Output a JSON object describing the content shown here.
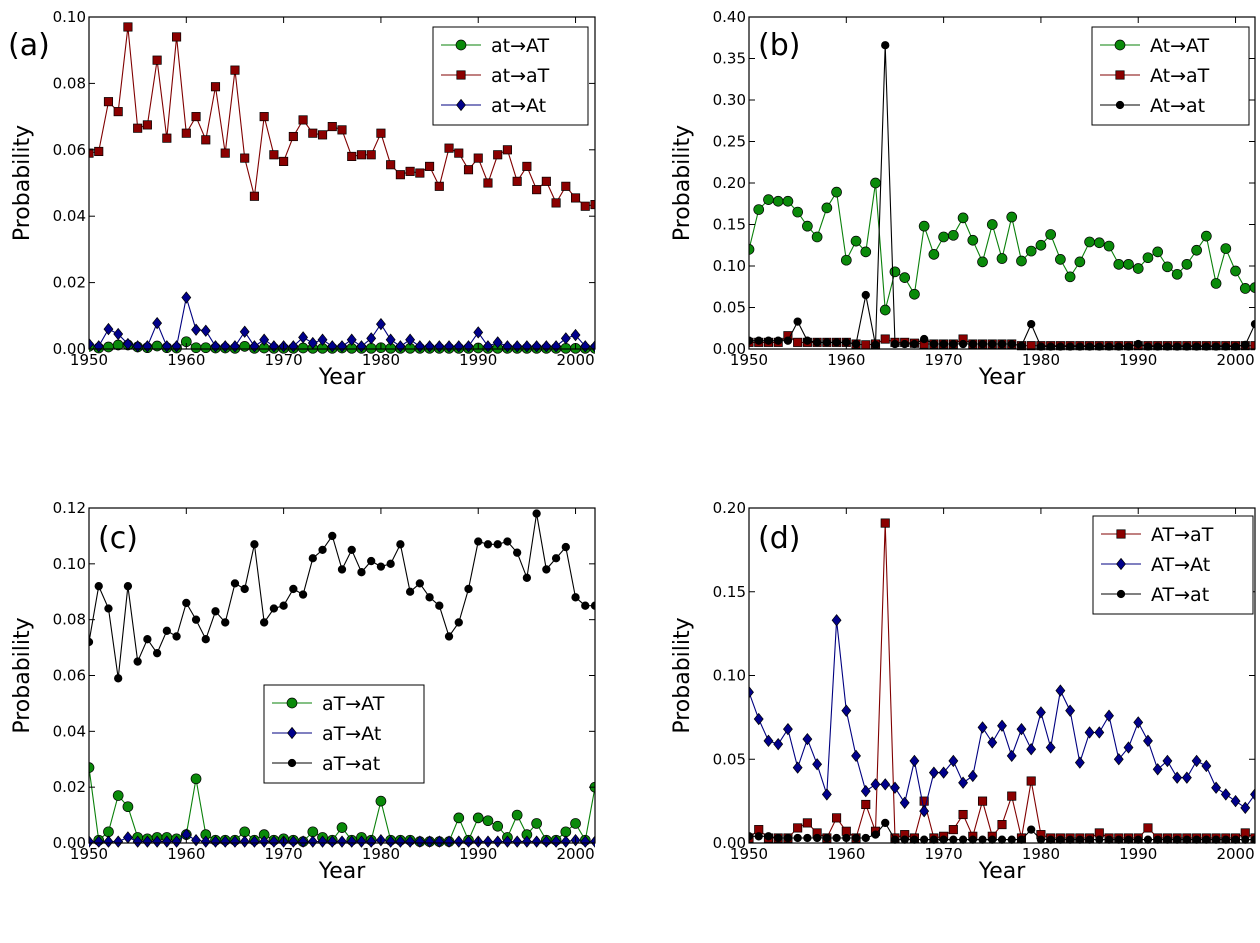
{
  "figure": {
    "panels": [
      "(a)",
      "(b)",
      "(c)",
      "(d)"
    ]
  },
  "colors": {
    "green": "#0a800a",
    "green_marker": "#0a8a0a",
    "red": "#800000",
    "red_marker": "#8b0000",
    "blue": "#000080",
    "blue_marker": "#00008b",
    "black": "#000000"
  },
  "chart_data": [
    {
      "type": "line",
      "panel_label": "(a)",
      "xlabel": "Year",
      "ylabel": "Probability",
      "xlim": [
        1950,
        2002
      ],
      "ylim": [
        0,
        0.1
      ],
      "xticks": [
        1950,
        1960,
        1970,
        1980,
        1990,
        2000
      ],
      "yticks": [
        0.0,
        0.02,
        0.04,
        0.06,
        0.08,
        0.1
      ],
      "ytick_labels": [
        "0.00",
        "0.02",
        "0.04",
        "0.06",
        "0.08",
        "0.10"
      ],
      "legend": "top-right",
      "x": [
        1950,
        1951,
        1952,
        1953,
        1954,
        1955,
        1956,
        1957,
        1958,
        1959,
        1960,
        1961,
        1962,
        1963,
        1964,
        1965,
        1966,
        1967,
        1968,
        1969,
        1970,
        1971,
        1972,
        1973,
        1974,
        1975,
        1976,
        1977,
        1978,
        1979,
        1980,
        1981,
        1982,
        1983,
        1984,
        1985,
        1986,
        1987,
        1988,
        1989,
        1990,
        1991,
        1992,
        1993,
        1994,
        1995,
        1996,
        1997,
        1998,
        1999,
        2000,
        2001,
        2002
      ],
      "series": [
        {
          "name": "at→AT",
          "color": "green",
          "marker": "circle",
          "values": [
            0.0008,
            0.0003,
            0.0006,
            0.0012,
            0.0012,
            0.0006,
            0.0004,
            0.0009,
            0.0004,
            0.0003,
            0.0022,
            0.0004,
            0.0004,
            0.0003,
            0.0003,
            0.0002,
            0.0008,
            0.0002,
            0.0003,
            0.0002,
            0.0002,
            0.0002,
            0.0003,
            0.0002,
            0.0002,
            0.0002,
            0.0003,
            0.0002,
            0.0002,
            0.0002,
            0.0004,
            0.0002,
            0.0002,
            0.0002,
            0.0002,
            0.0002,
            0.0002,
            0.0002,
            0.0002,
            0.0002,
            0.0003,
            0.0002,
            0.0002,
            0.0002,
            0.0002,
            0.0002,
            0.0002,
            0.0002,
            0.0002,
            0.0002,
            0.0002,
            0.0002,
            0.0002
          ]
        },
        {
          "name": "at→aT",
          "color": "red",
          "marker": "square",
          "values": [
            0.059,
            0.0595,
            0.0745,
            0.0715,
            0.097,
            0.0665,
            0.0675,
            0.087,
            0.0635,
            0.094,
            0.065,
            0.07,
            0.063,
            0.079,
            0.059,
            0.084,
            0.0575,
            0.046,
            0.07,
            0.0585,
            0.0565,
            0.064,
            0.069,
            0.065,
            0.0645,
            0.067,
            0.066,
            0.058,
            0.0585,
            0.0585,
            0.065,
            0.0555,
            0.0525,
            0.0535,
            0.053,
            0.055,
            0.049,
            0.0605,
            0.059,
            0.054,
            0.0575,
            0.05,
            0.0585,
            0.06,
            0.0505,
            0.055,
            0.048,
            0.0505,
            0.044,
            0.049,
            0.0455,
            0.043,
            0.0435
          ]
        },
        {
          "name": "at→At",
          "color": "blue",
          "marker": "diamond",
          "values": [
            0.0015,
            0.0008,
            0.006,
            0.0045,
            0.0015,
            0.0008,
            0.0008,
            0.0078,
            0.0008,
            0.0008,
            0.0155,
            0.0058,
            0.0055,
            0.0008,
            0.0008,
            0.0008,
            0.0052,
            0.0008,
            0.0028,
            0.0008,
            0.0008,
            0.0008,
            0.0035,
            0.0018,
            0.0028,
            0.0008,
            0.0008,
            0.0028,
            0.0008,
            0.0032,
            0.0075,
            0.0028,
            0.0008,
            0.0028,
            0.0008,
            0.0008,
            0.0008,
            0.0008,
            0.0008,
            0.0008,
            0.005,
            0.0008,
            0.002,
            0.0008,
            0.0008,
            0.0008,
            0.0008,
            0.0008,
            0.0008,
            0.0032,
            0.0042,
            0.0008,
            0.0008
          ]
        }
      ]
    },
    {
      "type": "line",
      "panel_label": "(b)",
      "xlabel": "Year",
      "ylabel": "Probability",
      "xlim": [
        1950,
        2002
      ],
      "ylim": [
        0,
        0.4
      ],
      "xticks": [
        1950,
        1960,
        1970,
        1980,
        1990,
        2000
      ],
      "yticks": [
        0.0,
        0.05,
        0.1,
        0.15,
        0.2,
        0.25,
        0.3,
        0.35,
        0.4
      ],
      "ytick_labels": [
        "0.00",
        "0.05",
        "0.10",
        "0.15",
        "0.20",
        "0.25",
        "0.30",
        "0.35",
        "0.40"
      ],
      "legend": "top-right",
      "x": [
        1950,
        1951,
        1952,
        1953,
        1954,
        1955,
        1956,
        1957,
        1958,
        1959,
        1960,
        1961,
        1962,
        1963,
        1964,
        1965,
        1966,
        1967,
        1968,
        1969,
        1970,
        1971,
        1972,
        1973,
        1974,
        1975,
        1976,
        1977,
        1978,
        1979,
        1980,
        1981,
        1982,
        1983,
        1984,
        1985,
        1986,
        1987,
        1988,
        1989,
        1990,
        1991,
        1992,
        1993,
        1994,
        1995,
        1996,
        1997,
        1998,
        1999,
        2000,
        2001,
        2002
      ],
      "series": [
        {
          "name": "At→AT",
          "color": "green",
          "marker": "circle",
          "values": [
            0.12,
            0.168,
            0.18,
            0.178,
            0.178,
            0.165,
            0.148,
            0.135,
            0.17,
            0.189,
            0.107,
            0.13,
            0.117,
            0.2,
            0.047,
            0.093,
            0.086,
            0.066,
            0.148,
            0.114,
            0.135,
            0.137,
            0.158,
            0.131,
            0.105,
            0.15,
            0.109,
            0.159,
            0.106,
            0.118,
            0.125,
            0.138,
            0.108,
            0.087,
            0.105,
            0.129,
            0.128,
            0.124,
            0.102,
            0.102,
            0.097,
            0.11,
            0.117,
            0.099,
            0.09,
            0.102,
            0.119,
            0.136,
            0.079,
            0.121,
            0.094,
            0.073,
            0.074
          ]
        },
        {
          "name": "At→aT",
          "color": "red",
          "marker": "square",
          "values": [
            0.008,
            0.008,
            0.008,
            0.008,
            0.016,
            0.008,
            0.008,
            0.008,
            0.008,
            0.008,
            0.008,
            0.006,
            0.005,
            0.006,
            0.012,
            0.008,
            0.008,
            0.007,
            0.006,
            0.006,
            0.006,
            0.006,
            0.012,
            0.006,
            0.006,
            0.006,
            0.006,
            0.006,
            0.004,
            0.004,
            0.004,
            0.004,
            0.004,
            0.004,
            0.004,
            0.004,
            0.004,
            0.004,
            0.004,
            0.004,
            0.004,
            0.004,
            0.004,
            0.004,
            0.004,
            0.004,
            0.004,
            0.004,
            0.004,
            0.004,
            0.004,
            0.004,
            0.004
          ]
        },
        {
          "name": "At→at",
          "color": "black",
          "marker": "circle",
          "values": [
            0.01,
            0.01,
            0.01,
            0.01,
            0.01,
            0.033,
            0.01,
            0.008,
            0.008,
            0.008,
            0.008,
            0.006,
            0.065,
            0.005,
            0.366,
            0.006,
            0.006,
            0.006,
            0.012,
            0.006,
            0.006,
            0.006,
            0.006,
            0.006,
            0.006,
            0.006,
            0.006,
            0.006,
            0.004,
            0.03,
            0.003,
            0.003,
            0.003,
            0.003,
            0.003,
            0.003,
            0.003,
            0.003,
            0.003,
            0.003,
            0.006,
            0.003,
            0.003,
            0.003,
            0.003,
            0.003,
            0.003,
            0.003,
            0.003,
            0.003,
            0.003,
            0.005,
            0.03
          ]
        }
      ]
    },
    {
      "type": "line",
      "panel_label": "(c)",
      "xlabel": "Year",
      "ylabel": "Probability",
      "xlim": [
        1950,
        2002
      ],
      "ylim": [
        0,
        0.12
      ],
      "xticks": [
        1950,
        1960,
        1970,
        1980,
        1990,
        2000
      ],
      "yticks": [
        0.0,
        0.02,
        0.04,
        0.06,
        0.08,
        0.1,
        0.12
      ],
      "ytick_labels": [
        "0.00",
        "0.02",
        "0.04",
        "0.06",
        "0.08",
        "0.10",
        "0.12"
      ],
      "legend": "center",
      "x": [
        1950,
        1951,
        1952,
        1953,
        1954,
        1955,
        1956,
        1957,
        1958,
        1959,
        1960,
        1961,
        1962,
        1963,
        1964,
        1965,
        1966,
        1967,
        1968,
        1969,
        1970,
        1971,
        1972,
        1973,
        1974,
        1975,
        1976,
        1977,
        1978,
        1979,
        1980,
        1981,
        1982,
        1983,
        1984,
        1985,
        1986,
        1987,
        1988,
        1989,
        1990,
        1991,
        1992,
        1993,
        1994,
        1995,
        1996,
        1997,
        1998,
        1999,
        2000,
        2001,
        2002
      ],
      "series": [
        {
          "name": "aT→AT",
          "color": "green",
          "marker": "circle",
          "values": [
            0.027,
            0.001,
            0.004,
            0.017,
            0.013,
            0.002,
            0.0015,
            0.002,
            0.002,
            0.0015,
            0.003,
            0.023,
            0.003,
            0.001,
            0.001,
            0.001,
            0.004,
            0.001,
            0.003,
            0.001,
            0.0015,
            0.001,
            0.0005,
            0.004,
            0.002,
            0.001,
            0.0055,
            0.001,
            0.002,
            0.001,
            0.015,
            0.001,
            0.001,
            0.001,
            0.0005,
            0.0005,
            0.0005,
            0.0005,
            0.009,
            0.001,
            0.009,
            0.008,
            0.006,
            0.002,
            0.01,
            0.003,
            0.007,
            0.001,
            0.001,
            0.004,
            0.007,
            0.001,
            0.02
          ]
        },
        {
          "name": "aT→At",
          "color": "blue",
          "marker": "diamond",
          "values": [
            0.0005,
            0.0005,
            0.0005,
            0.0005,
            0.002,
            0.0005,
            0.0005,
            0.0005,
            0.0005,
            0.0005,
            0.003,
            0.001,
            0.0005,
            0.0005,
            0.0005,
            0.0005,
            0.0005,
            0.0005,
            0.0005,
            0.0005,
            0.0005,
            0.0005,
            0.0005,
            0.0005,
            0.0005,
            0.0005,
            0.0005,
            0.0005,
            0.0005,
            0.0005,
            0.001,
            0.0005,
            0.0005,
            0.0005,
            0.0005,
            0.0005,
            0.0005,
            0.0005,
            0.0005,
            0.0005,
            0.0005,
            0.0005,
            0.0005,
            0.0005,
            0.0005,
            0.0005,
            0.0005,
            0.0005,
            0.0005,
            0.0005,
            0.001,
            0.0005,
            0.0005
          ]
        },
        {
          "name": "aT→at",
          "color": "black",
          "marker": "circle",
          "values": [
            0.072,
            0.092,
            0.084,
            0.059,
            0.092,
            0.065,
            0.073,
            0.068,
            0.076,
            0.074,
            0.086,
            0.08,
            0.073,
            0.083,
            0.079,
            0.093,
            0.091,
            0.107,
            0.079,
            0.084,
            0.085,
            0.091,
            0.089,
            0.102,
            0.105,
            0.11,
            0.098,
            0.105,
            0.097,
            0.101,
            0.099,
            0.1,
            0.107,
            0.09,
            0.093,
            0.088,
            0.085,
            0.074,
            0.079,
            0.091,
            0.108,
            0.107,
            0.107,
            0.108,
            0.104,
            0.095,
            0.118,
            0.098,
            0.102,
            0.106,
            0.088,
            0.085,
            0.085
          ]
        }
      ]
    },
    {
      "type": "line",
      "panel_label": "(d)",
      "xlabel": "Year",
      "ylabel": "Probability",
      "xlim": [
        1950,
        2002
      ],
      "ylim": [
        0,
        0.2
      ],
      "xticks": [
        1950,
        1960,
        1970,
        1980,
        1990,
        2000
      ],
      "yticks": [
        0.0,
        0.05,
        0.1,
        0.15,
        0.2
      ],
      "ytick_labels": [
        "0.00",
        "0.05",
        "0.10",
        "0.15",
        "0.20"
      ],
      "legend": "top-right",
      "x": [
        1950,
        1951,
        1952,
        1953,
        1954,
        1955,
        1956,
        1957,
        1958,
        1959,
        1960,
        1961,
        1962,
        1963,
        1964,
        1965,
        1966,
        1967,
        1968,
        1969,
        1970,
        1971,
        1972,
        1973,
        1974,
        1975,
        1976,
        1977,
        1978,
        1979,
        1980,
        1981,
        1982,
        1983,
        1984,
        1985,
        1986,
        1987,
        1988,
        1989,
        1990,
        1991,
        1992,
        1993,
        1994,
        1995,
        1996,
        1997,
        1998,
        1999,
        2000,
        2001,
        2002
      ],
      "series": [
        {
          "name": "AT→aT",
          "color": "red",
          "marker": "square",
          "values": [
            0.003,
            0.008,
            0.003,
            0.003,
            0.003,
            0.009,
            0.012,
            0.006,
            0.003,
            0.015,
            0.007,
            0.003,
            0.023,
            0.007,
            0.191,
            0.003,
            0.005,
            0.003,
            0.025,
            0.003,
            0.004,
            0.008,
            0.017,
            0.004,
            0.025,
            0.004,
            0.011,
            0.028,
            0.003,
            0.037,
            0.005,
            0.003,
            0.003,
            0.003,
            0.003,
            0.003,
            0.006,
            0.003,
            0.003,
            0.003,
            0.003,
            0.009,
            0.003,
            0.003,
            0.003,
            0.003,
            0.003,
            0.003,
            0.003,
            0.003,
            0.003,
            0.006,
            0.003
          ]
        },
        {
          "name": "AT→At",
          "color": "blue",
          "marker": "diamond",
          "values": [
            0.09,
            0.074,
            0.061,
            0.059,
            0.068,
            0.045,
            0.062,
            0.047,
            0.029,
            0.133,
            0.079,
            0.052,
            0.031,
            0.035,
            0.035,
            0.033,
            0.024,
            0.049,
            0.019,
            0.042,
            0.042,
            0.049,
            0.036,
            0.04,
            0.069,
            0.06,
            0.07,
            0.052,
            0.068,
            0.056,
            0.078,
            0.057,
            0.091,
            0.079,
            0.048,
            0.066,
            0.066,
            0.076,
            0.05,
            0.057,
            0.072,
            0.061,
            0.044,
            0.049,
            0.039,
            0.039,
            0.049,
            0.046,
            0.033,
            0.029,
            0.025,
            0.021,
            0.029
          ]
        },
        {
          "name": "AT→at",
          "color": "black",
          "marker": "circle",
          "values": [
            0.004,
            0.004,
            0.004,
            0.003,
            0.003,
            0.003,
            0.003,
            0.003,
            0.003,
            0.003,
            0.003,
            0.003,
            0.003,
            0.005,
            0.012,
            0.002,
            0.002,
            0.002,
            0.002,
            0.002,
            0.002,
            0.002,
            0.002,
            0.002,
            0.002,
            0.002,
            0.002,
            0.002,
            0.002,
            0.008,
            0.002,
            0.002,
            0.002,
            0.002,
            0.002,
            0.002,
            0.002,
            0.002,
            0.002,
            0.002,
            0.002,
            0.002,
            0.002,
            0.002,
            0.002,
            0.002,
            0.002,
            0.002,
            0.002,
            0.002,
            0.002,
            0.002,
            0.002
          ]
        }
      ]
    }
  ]
}
